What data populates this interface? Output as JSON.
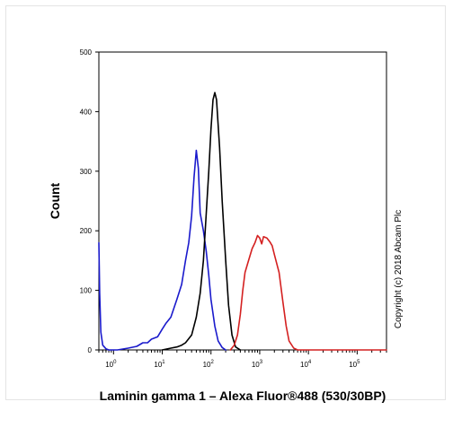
{
  "chart_data": {
    "type": "line",
    "title": "",
    "xlabel": "Laminin gamma 1 – Alexa Fluor®488 (530/30BP)",
    "ylabel": "Count",
    "x_scale": "log",
    "xlim": [
      0.5,
      400000
    ],
    "ylim": [
      0,
      500
    ],
    "y_ticks": [
      0,
      100,
      200,
      300,
      400,
      500
    ],
    "x_tick_labels": [
      {
        "value": 1,
        "base": "10",
        "exp": "0"
      },
      {
        "value": 10,
        "base": "10",
        "exp": "1"
      },
      {
        "value": 100,
        "base": "10",
        "exp": "2"
      },
      {
        "value": 1000,
        "base": "10",
        "exp": "3"
      },
      {
        "value": 10000,
        "base": "10",
        "exp": "4"
      },
      {
        "value": 100000,
        "base": "10",
        "exp": "5"
      }
    ],
    "grid": false,
    "series": [
      {
        "color": "#1a1acc",
        "points": [
          [
            0.5,
            180
          ],
          [
            0.52,
            95
          ],
          [
            0.55,
            30
          ],
          [
            0.6,
            8
          ],
          [
            0.7,
            2
          ],
          [
            0.8,
            0
          ],
          [
            1.2,
            0
          ],
          [
            2,
            3
          ],
          [
            3,
            6
          ],
          [
            4,
            12
          ],
          [
            5,
            12
          ],
          [
            6,
            18
          ],
          [
            8,
            22
          ],
          [
            10,
            35
          ],
          [
            12,
            45
          ],
          [
            15,
            55
          ],
          [
            20,
            85
          ],
          [
            25,
            110
          ],
          [
            30,
            150
          ],
          [
            35,
            180
          ],
          [
            40,
            225
          ],
          [
            45,
            290
          ],
          [
            50,
            335
          ],
          [
            55,
            305
          ],
          [
            60,
            230
          ],
          [
            70,
            200
          ],
          [
            80,
            165
          ],
          [
            90,
            125
          ],
          [
            100,
            85
          ],
          [
            120,
            40
          ],
          [
            140,
            15
          ],
          [
            170,
            4
          ],
          [
            200,
            0
          ]
        ]
      },
      {
        "color": "#000000",
        "points": [
          [
            10,
            0
          ],
          [
            15,
            3
          ],
          [
            20,
            5
          ],
          [
            25,
            8
          ],
          [
            30,
            12
          ],
          [
            40,
            25
          ],
          [
            50,
            55
          ],
          [
            60,
            95
          ],
          [
            70,
            150
          ],
          [
            80,
            230
          ],
          [
            90,
            300
          ],
          [
            100,
            370
          ],
          [
            110,
            420
          ],
          [
            120,
            432
          ],
          [
            130,
            420
          ],
          [
            150,
            340
          ],
          [
            170,
            250
          ],
          [
            200,
            150
          ],
          [
            230,
            75
          ],
          [
            270,
            25
          ],
          [
            320,
            5
          ],
          [
            400,
            0
          ]
        ]
      },
      {
        "color": "#d42020",
        "points": [
          [
            250,
            0
          ],
          [
            300,
            8
          ],
          [
            350,
            25
          ],
          [
            400,
            60
          ],
          [
            450,
            100
          ],
          [
            500,
            130
          ],
          [
            600,
            152
          ],
          [
            700,
            170
          ],
          [
            800,
            180
          ],
          [
            900,
            192
          ],
          [
            1000,
            188
          ],
          [
            1100,
            178
          ],
          [
            1200,
            190
          ],
          [
            1400,
            188
          ],
          [
            1600,
            182
          ],
          [
            1800,
            175
          ],
          [
            2000,
            160
          ],
          [
            2500,
            130
          ],
          [
            3000,
            80
          ],
          [
            3500,
            40
          ],
          [
            4000,
            15
          ],
          [
            5000,
            3
          ],
          [
            6000,
            0
          ],
          [
            400000,
            0
          ]
        ]
      }
    ]
  },
  "copyright": "Copyright (c) 2018 Abcam Plc"
}
